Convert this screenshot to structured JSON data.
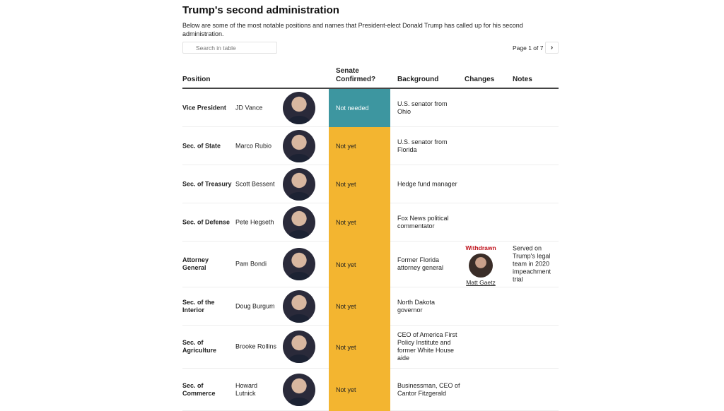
{
  "title": "Trump's second administration",
  "description": "Below are some of the most notable positions and names that President-elect Donald Trump has called up for his second administration.",
  "search": {
    "placeholder": "Search in table"
  },
  "pagination": {
    "label": "Page 1 of 7",
    "next_icon": "chevron-right-icon"
  },
  "columns": {
    "position": "Position",
    "senate": "Senate Confirmed?",
    "background": "Background",
    "changes": "Changes",
    "notes": "Notes"
  },
  "colors": {
    "not_needed": "#3d96a0",
    "not_yet": "#f3b530",
    "withdrawn": "#c0141e"
  },
  "rows": [
    {
      "position": "Vice President",
      "name": "JD Vance",
      "senate": "Not needed",
      "background": "U.S. senator from Ohio"
    },
    {
      "position": "Sec. of State",
      "name": "Marco Rubio",
      "senate": "Not yet",
      "background": "U.S. senator from Florida"
    },
    {
      "position": "Sec. of Treasury",
      "name": "Scott Bessent",
      "senate": "Not yet",
      "background": "Hedge fund manager"
    },
    {
      "position": "Sec. of Defense",
      "name": "Pete Hegseth",
      "senate": "Not yet",
      "background": "Fox News political commentator"
    },
    {
      "position": "Attorney General",
      "name": "Pam Bondi",
      "senate": "Not yet",
      "background": "Former Florida attorney general",
      "changes": {
        "status": "Withdrawn",
        "name": "Matt Gaetz"
      },
      "notes": "Served on Trump's legal team in 2020 impeachment trial"
    },
    {
      "position": "Sec. of the Interior",
      "name": "Doug Burgum",
      "senate": "Not yet",
      "background": "North Dakota governor"
    },
    {
      "position": "Sec. of Agriculture",
      "name": "Brooke Rollins",
      "senate": "Not yet",
      "background": "CEO of America First Policy Institute and former White House aide"
    },
    {
      "position": "Sec. of Commerce",
      "name": "Howard Lutnick",
      "senate": "Not yet",
      "background": "Businessman, CEO of Cantor Fitzgerald"
    }
  ]
}
